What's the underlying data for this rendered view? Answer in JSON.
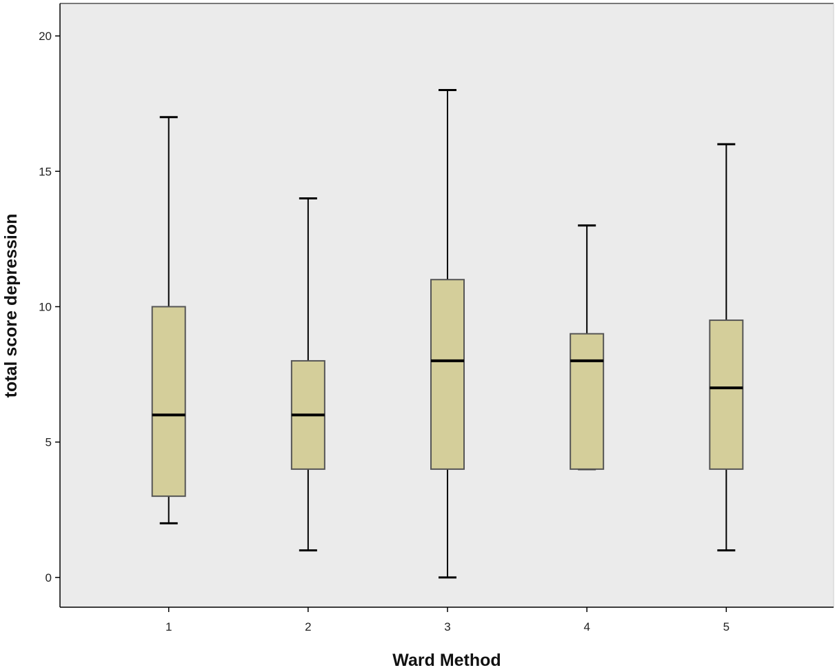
{
  "chart_data": {
    "type": "boxplot",
    "title": "",
    "xlabel": "Ward Method",
    "ylabel": "total score depression",
    "categories": [
      "1",
      "2",
      "3",
      "4",
      "5"
    ],
    "ylim": [
      -1.1,
      21.2
    ],
    "yticks": [
      0,
      5,
      10,
      15,
      20
    ],
    "grid": false,
    "legend": "none",
    "boxes": [
      {
        "category": "1",
        "min": 2,
        "q1": 3,
        "median": 6,
        "q3": 10,
        "max": 17
      },
      {
        "category": "2",
        "min": 1,
        "q1": 4,
        "median": 6,
        "q3": 8,
        "max": 14
      },
      {
        "category": "3",
        "min": 0,
        "q1": 4,
        "median": 8,
        "q3": 11,
        "max": 18
      },
      {
        "category": "4",
        "min": 4,
        "q1": 4,
        "median": 8,
        "q3": 9,
        "max": 13
      },
      {
        "category": "5",
        "min": 1,
        "q1": 4,
        "median": 7,
        "q3": 9.5,
        "max": 16
      }
    ],
    "colors": {
      "plot_background": "#ebebeb",
      "box_fill": "#d4ce9a",
      "box_stroke": "#555555",
      "line": "#000000"
    }
  }
}
